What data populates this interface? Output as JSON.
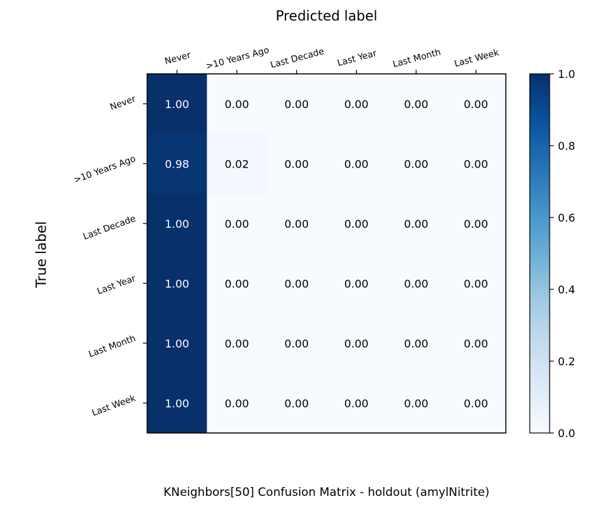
{
  "chart_data": {
    "type": "heatmap",
    "title": "KNeighbors[50] Confusion Matrix - holdout (amylNitrite)",
    "xlabel": "Predicted label",
    "ylabel": "True label",
    "x_categories": [
      "Never",
      ">10 Years Ago",
      "Last Decade",
      "Last Year",
      "Last Month",
      "Last Week"
    ],
    "y_categories": [
      "Never",
      ">10 Years Ago",
      "Last Decade",
      "Last Year",
      "Last Month",
      "Last Week"
    ],
    "values": [
      [
        1.0,
        0.0,
        0.0,
        0.0,
        0.0,
        0.0
      ],
      [
        0.98,
        0.02,
        0.0,
        0.0,
        0.0,
        0.0
      ],
      [
        1.0,
        0.0,
        0.0,
        0.0,
        0.0,
        0.0
      ],
      [
        1.0,
        0.0,
        0.0,
        0.0,
        0.0,
        0.0
      ],
      [
        1.0,
        0.0,
        0.0,
        0.0,
        0.0,
        0.0
      ],
      [
        1.0,
        0.0,
        0.0,
        0.0,
        0.0,
        0.0
      ]
    ],
    "value_format": "2 decimals",
    "colormap": "Blues",
    "colorbar": {
      "range": [
        0.0,
        1.0
      ],
      "ticks": [
        "0.0",
        "0.2",
        "0.4",
        "0.6",
        "0.8",
        "1.0"
      ]
    },
    "colors": {
      "low": "#f7fbff",
      "high": "#08306b",
      "text_dark": "#000000",
      "text_light": "#ffffff"
    },
    "grid": false
  }
}
